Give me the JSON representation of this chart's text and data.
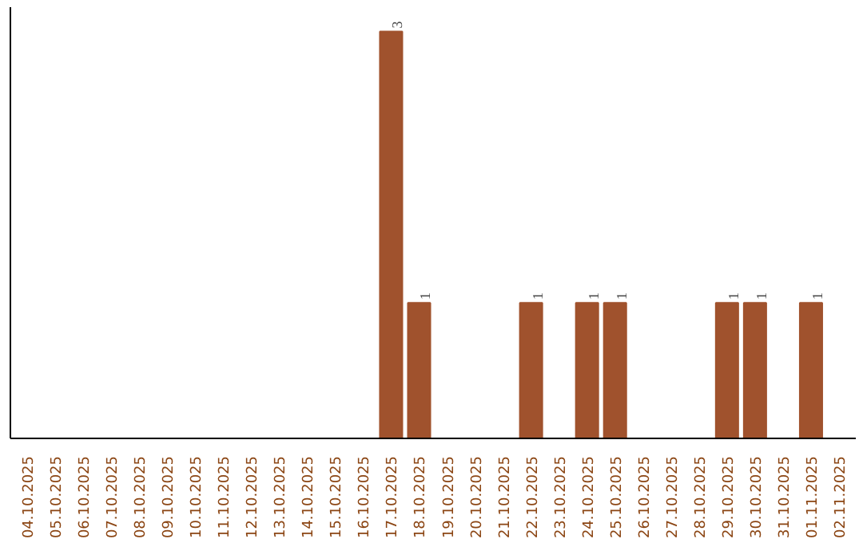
{
  "chart_data": {
    "type": "bar",
    "categories": [
      "04.10.2025",
      "05.10.2025",
      "06.10.2025",
      "07.10.2025",
      "08.10.2025",
      "09.10.2025",
      "10.10.2025",
      "11.10.2025",
      "12.10.2025",
      "13.10.2025",
      "14.10.2025",
      "15.10.2025",
      "16.10.2025",
      "17.10.2025",
      "18.10.2025",
      "19.10.2025",
      "20.10.2025",
      "21.10.2025",
      "22.10.2025",
      "23.10.2025",
      "24.10.2025",
      "25.10.2025",
      "26.10.2025",
      "27.10.2025",
      "28.10.2025",
      "29.10.2025",
      "30.10.2025",
      "31.10.2025",
      "01.11.2025",
      "02.11.2025"
    ],
    "values": [
      null,
      null,
      null,
      null,
      null,
      null,
      null,
      null,
      null,
      null,
      null,
      null,
      null,
      3,
      1,
      null,
      null,
      null,
      1,
      null,
      1,
      1,
      null,
      null,
      null,
      1,
      1,
      null,
      1,
      null
    ],
    "value_labels": [
      null,
      null,
      null,
      null,
      null,
      null,
      null,
      null,
      null,
      null,
      null,
      null,
      null,
      "3",
      "1",
      null,
      null,
      null,
      "1",
      null,
      "1",
      "1",
      null,
      null,
      null,
      "1",
      "1",
      null,
      "1",
      null
    ],
    "color": "#a0522d",
    "grid": false,
    "tick_labels": "x"
  }
}
